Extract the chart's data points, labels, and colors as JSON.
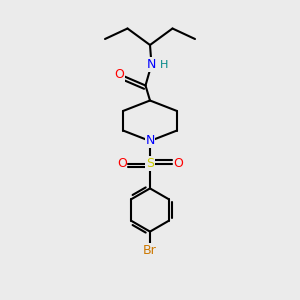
{
  "bg_color": "#ebebeb",
  "bond_color": "#000000",
  "bond_width": 1.5,
  "atom_colors": {
    "N_amide": "#0000ff",
    "N_pip": "#0000ff",
    "O": "#ff0000",
    "S": "#cccc00",
    "Br": "#cc7700",
    "H": "#008888"
  },
  "fig_size": [
    3.0,
    3.0
  ],
  "dpi": 100,
  "xlim": [
    0,
    10
  ],
  "ylim": [
    0,
    10
  ]
}
